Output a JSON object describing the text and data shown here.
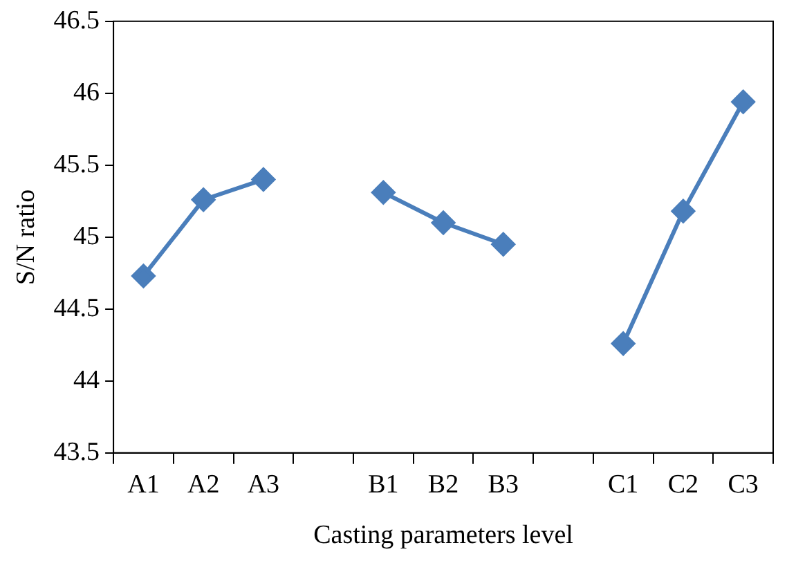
{
  "chart_data": {
    "type": "line",
    "xlabel": "Casting parameters level",
    "ylabel": "S/N ratio",
    "categories": [
      "A1",
      "A2",
      "A3",
      null,
      "B1",
      "B2",
      "B3",
      null,
      "C1",
      "C2",
      "C3"
    ],
    "series": [
      {
        "color": "#4a7ebb",
        "values": [
          44.73,
          45.26,
          45.4,
          null,
          45.31,
          45.1,
          44.95,
          null,
          44.26,
          45.18,
          45.94
        ]
      }
    ],
    "ylim": [
      43.5,
      46.5
    ],
    "yticks": [
      43.5,
      44,
      44.5,
      45,
      45.5,
      46,
      46.5
    ],
    "grid": false,
    "legend": false,
    "marker": "diamond",
    "line_style": "solid"
  }
}
